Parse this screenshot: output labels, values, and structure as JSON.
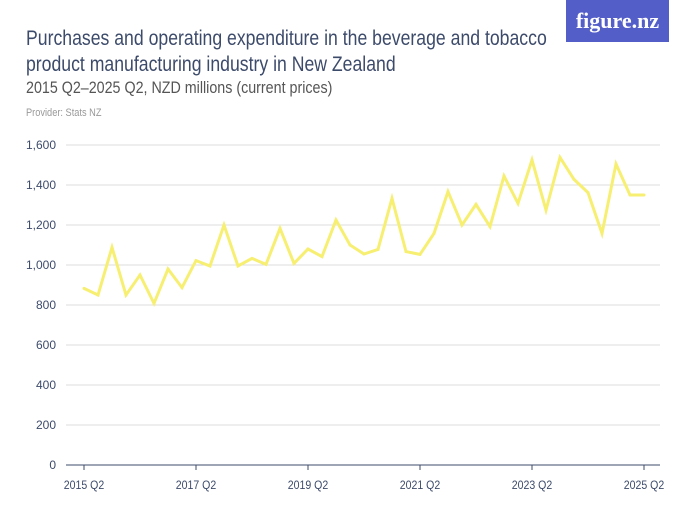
{
  "header": {
    "title_line1": "Purchases and operating expenditure in the beverage and tobacco",
    "title_line2": "product manufacturing industry in New Zealand",
    "subtitle": "2015 Q2–2025 Q2, NZD millions (current prices)",
    "provider": "Provider: Stats NZ",
    "logo": "figure.nz"
  },
  "colors": {
    "line": "#f7ef72",
    "logo_bg": "#535ec8",
    "grid": "#dddddd"
  },
  "chart_data": {
    "type": "line",
    "title": "Purchases and operating expenditure in the beverage and tobacco product manufacturing industry in New Zealand",
    "subtitle": "2015 Q2–2025 Q2, NZD millions (current prices)",
    "ylim": [
      0,
      1600
    ],
    "yticks": [
      0,
      200,
      400,
      600,
      800,
      1000,
      1200,
      1400,
      1600
    ],
    "ytick_labels": [
      "0",
      "200",
      "400",
      "600",
      "800",
      "1,000",
      "1,200",
      "1,400",
      "1,600"
    ],
    "xtick_labels": [
      "2015 Q2",
      "2017 Q2",
      "2019 Q2",
      "2021 Q2",
      "2023 Q2",
      "2025 Q2"
    ],
    "grid": true,
    "x_start": "2015 Q2",
    "x_end": "2025 Q2",
    "values": [
      883,
      850,
      1088,
      850,
      950,
      808,
      980,
      887,
      1022,
      995,
      1200,
      995,
      1033,
      1003,
      1183,
      1008,
      1080,
      1042,
      1225,
      1100,
      1055,
      1078,
      1333,
      1067,
      1053,
      1158,
      1367,
      1200,
      1303,
      1192,
      1445,
      1308,
      1525,
      1275,
      1538,
      1428,
      1362,
      1158,
      1505,
      1350,
      1350
    ]
  }
}
